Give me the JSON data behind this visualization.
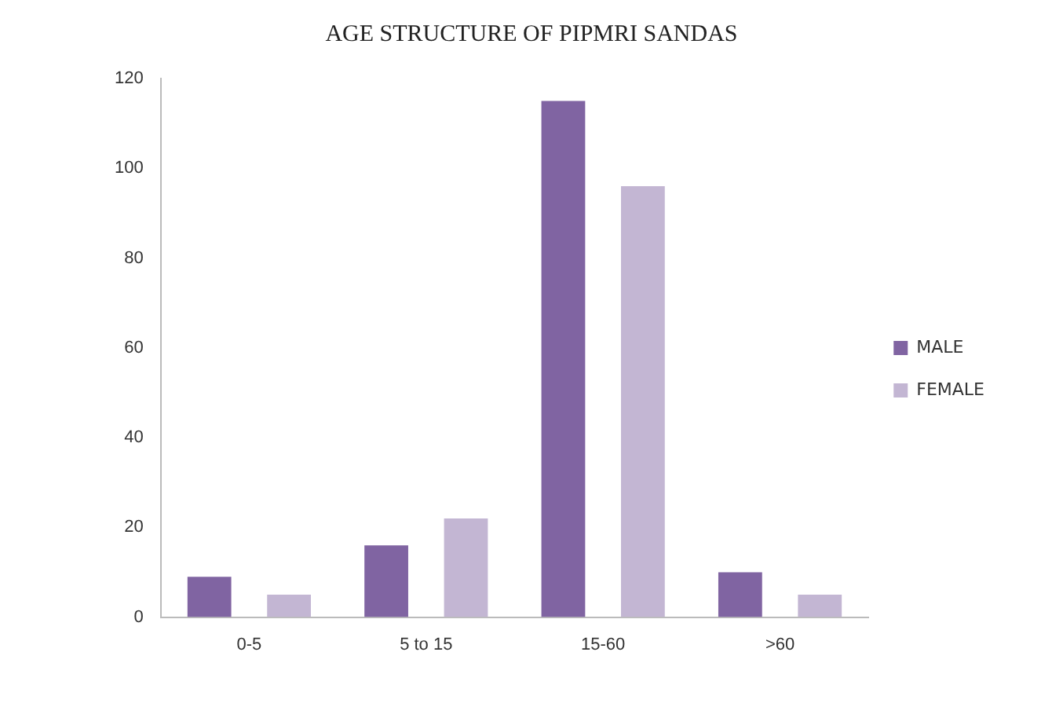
{
  "chart_data": {
    "type": "bar",
    "title": "AGE STRUCTURE OF PIPMRI SANDAS",
    "categories": [
      "0-5",
      "5 to 15",
      "15-60",
      ">60"
    ],
    "series": [
      {
        "name": "MALE",
        "color": "#8064a2",
        "values": [
          9,
          16,
          115,
          10
        ]
      },
      {
        "name": "FEMALE",
        "color": "#c3b6d3",
        "values": [
          5,
          22,
          96,
          5
        ]
      }
    ],
    "ylim": [
      0,
      120
    ],
    "yticks": [
      0,
      20,
      40,
      60,
      80,
      100,
      120
    ],
    "grid": false,
    "legend": "right"
  }
}
